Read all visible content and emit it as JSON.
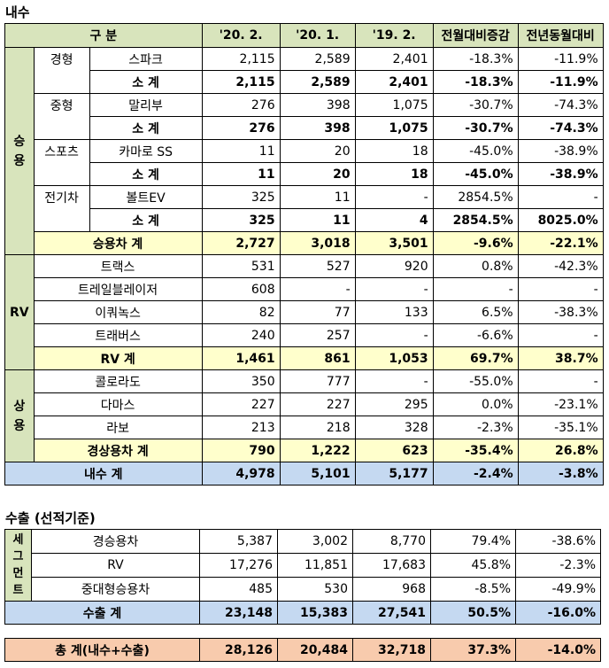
{
  "domestic": {
    "title": "내수",
    "header": [
      "구 분",
      "'20. 2.",
      "'20. 1.",
      "'19. 2.",
      "전월대비증감",
      "전년동월대비"
    ],
    "groups": [
      {
        "label": "승용",
        "subgroups": [
          {
            "segment": "경형",
            "model": "스파크",
            "values": [
              "2,115",
              "2,589",
              "2,401",
              "-18.3%",
              "-11.9%"
            ],
            "subtotal_label": "소 계",
            "subtotal": [
              "2,115",
              "2,589",
              "2,401",
              "-18.3%",
              "-11.9%"
            ]
          },
          {
            "segment": "중형",
            "model": "말리부",
            "values": [
              "276",
              "398",
              "1,075",
              "-30.7%",
              "-74.3%"
            ],
            "subtotal_label": "소 계",
            "subtotal": [
              "276",
              "398",
              "1,075",
              "-30.7%",
              "-74.3%"
            ]
          },
          {
            "segment": "스포츠",
            "model": "카마로 SS",
            "values": [
              "11",
              "20",
              "18",
              "-45.0%",
              "-38.9%"
            ],
            "subtotal_label": "소 계",
            "subtotal": [
              "11",
              "20",
              "18",
              "-45.0%",
              "-38.9%"
            ]
          },
          {
            "segment": "전기차",
            "model": "볼트EV",
            "values": [
              "325",
              "11",
              "-",
              "2854.5%",
              "-"
            ],
            "subtotal_label": "소 계",
            "subtotal": [
              "325",
              "11",
              "4",
              "2854.5%",
              "8025.0%"
            ]
          }
        ],
        "total_label": "승용차 계",
        "total": [
          "2,727",
          "3,018",
          "3,501",
          "-9.6%",
          "-22.1%"
        ]
      },
      {
        "label": "RV",
        "rows": [
          {
            "model": "트랙스",
            "values": [
              "531",
              "527",
              "920",
              "0.8%",
              "-42.3%"
            ]
          },
          {
            "model": "트레일블레이저",
            "values": [
              "608",
              "-",
              "-",
              "-",
              "-"
            ]
          },
          {
            "model": "이쿼녹스",
            "values": [
              "82",
              "77",
              "133",
              "6.5%",
              "-38.3%"
            ]
          },
          {
            "model": "트래버스",
            "values": [
              "240",
              "257",
              "-",
              "-6.6%",
              "-"
            ]
          }
        ],
        "total_label": "RV 계",
        "total": [
          "1,461",
          "861",
          "1,053",
          "69.7%",
          "38.7%"
        ]
      },
      {
        "label": "상용",
        "rows": [
          {
            "model": "콜로라도",
            "values": [
              "350",
              "777",
              "-",
              "-55.0%",
              "-"
            ]
          },
          {
            "model": "다마스",
            "values": [
              "227",
              "227",
              "295",
              "0.0%",
              "-23.1%"
            ]
          },
          {
            "model": "라보",
            "values": [
              "213",
              "218",
              "328",
              "-2.3%",
              "-35.1%"
            ]
          }
        ],
        "total_label": "경상용차 계",
        "total": [
          "790",
          "1,222",
          "623",
          "-35.4%",
          "26.8%"
        ]
      }
    ],
    "total_label": "내수 계",
    "total": [
      "4,978",
      "5,101",
      "5,177",
      "-2.4%",
      "-3.8%"
    ]
  },
  "export": {
    "title": "수출 (선적기준)",
    "segment_label": "세그먼트",
    "rows": [
      {
        "model": "경승용차",
        "values": [
          "5,387",
          "3,002",
          "8,770",
          "79.4%",
          "-38.6%"
        ]
      },
      {
        "model": "RV",
        "values": [
          "17,276",
          "11,851",
          "17,683",
          "45.8%",
          "-2.3%"
        ]
      },
      {
        "model": "중대형승용차",
        "values": [
          "485",
          "530",
          "968",
          "-8.5%",
          "-49.9%"
        ]
      }
    ],
    "total_label": "수출 계",
    "total": [
      "23,148",
      "15,383",
      "27,541",
      "50.5%",
      "-16.0%"
    ]
  },
  "grand_total": {
    "label": "총 계(내수+수출)",
    "values": [
      "28,126",
      "20,484",
      "32,718",
      "37.3%",
      "-14.0%"
    ]
  }
}
